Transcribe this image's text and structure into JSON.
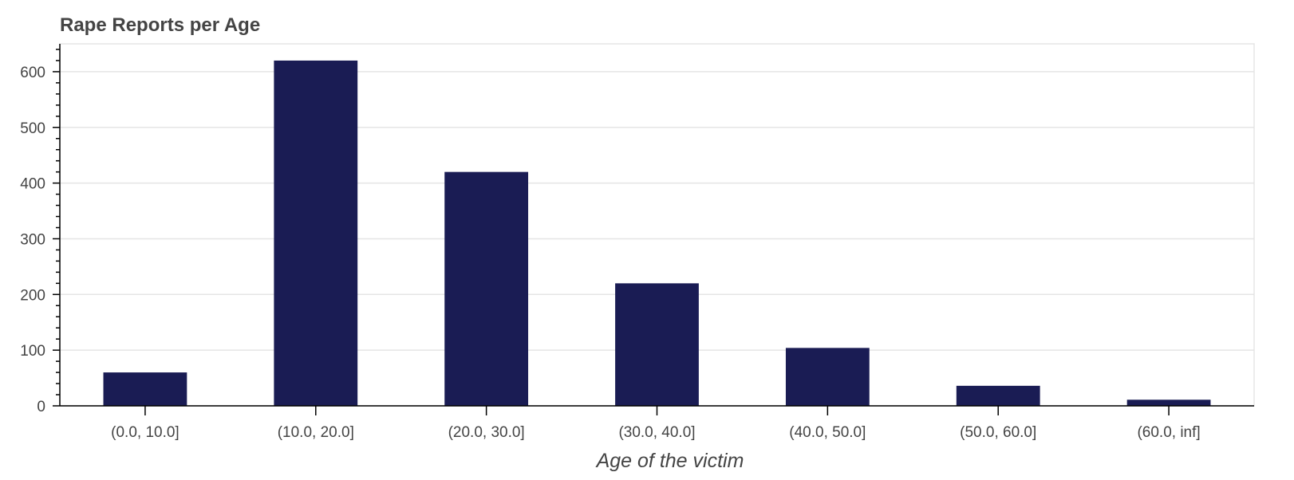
{
  "chart_data": {
    "type": "bar",
    "title": "Rape Reports per Age",
    "xlabel": "Age of the victim",
    "ylabel": "",
    "categories": [
      "(0.0, 10.0]",
      "(10.0, 20.0]",
      "(20.0, 30.0]",
      "(30.0, 40.0]",
      "(40.0, 50.0]",
      "(50.0, 60.0]",
      "(60.0, inf]"
    ],
    "values": [
      60,
      620,
      420,
      220,
      104,
      36,
      11
    ],
    "ylim": [
      0,
      650
    ],
    "yticks": [
      0,
      100,
      200,
      300,
      400,
      500,
      600
    ],
    "grid": true,
    "legend": "none",
    "bar_color": "#1a1c54"
  }
}
